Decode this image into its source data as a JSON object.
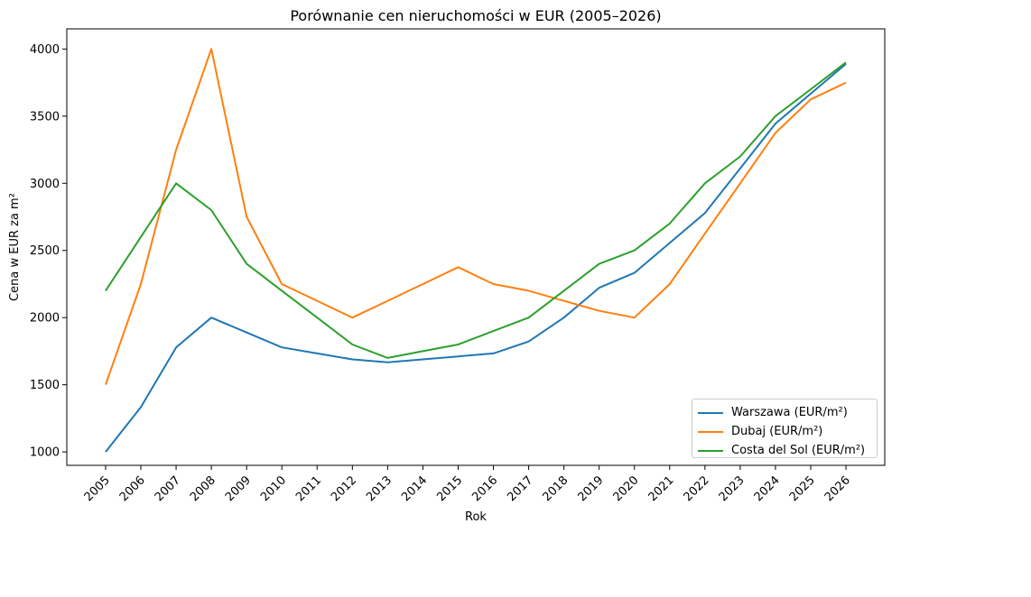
{
  "chart_data": {
    "type": "line",
    "title": "Porównanie cen nieruchomości w EUR (2005–2026)",
    "xlabel": "Rok",
    "ylabel": "Cena w EUR za m²",
    "x": [
      2005,
      2006,
      2007,
      2008,
      2009,
      2010,
      2011,
      2012,
      2013,
      2014,
      2015,
      2016,
      2017,
      2018,
      2019,
      2020,
      2021,
      2022,
      2023,
      2024,
      2025,
      2026
    ],
    "x_tick_labels": [
      "2005",
      "2006",
      "2007",
      "2008",
      "2009",
      "2010",
      "2011",
      "2012",
      "2013",
      "2014",
      "2015",
      "2016",
      "2017",
      "2018",
      "2019",
      "2020",
      "2021",
      "2022",
      "2023",
      "2024",
      "2025",
      "2026"
    ],
    "y_ticks": [
      1000,
      1500,
      2000,
      2500,
      3000,
      3500,
      4000
    ],
    "y_tick_labels": [
      "1000",
      "1500",
      "2000",
      "2500",
      "3000",
      "3500",
      "4000"
    ],
    "ylim": [
      900,
      4150
    ],
    "xlim": [
      2003.9,
      2027.1
    ],
    "legend_position": "lower-right",
    "series": [
      {
        "name": "Warszawa (EUR/m²)",
        "color": "#1f77b4",
        "values": [
          1000,
          1333,
          1778,
          2000,
          1889,
          1778,
          1733,
          1689,
          1667,
          1689,
          1711,
          1733,
          1822,
          2000,
          2222,
          2333,
          2556,
          2778,
          3111,
          3444,
          3667,
          3889
        ]
      },
      {
        "name": "Dubaj (EUR/m²)",
        "color": "#ff7f0e",
        "values": [
          1500,
          2250,
          3250,
          4000,
          2750,
          2250,
          2125,
          2000,
          2125,
          2250,
          2375,
          2250,
          2200,
          2125,
          2050,
          2000,
          2250,
          2625,
          3000,
          3375,
          3625,
          3750
        ]
      },
      {
        "name": "Costa del Sol (EUR/m²)",
        "color": "#2ca02c",
        "values": [
          2200,
          2600,
          3000,
          2800,
          2400,
          2200,
          2000,
          1800,
          1700,
          1750,
          1800,
          1900,
          2000,
          2200,
          2400,
          2500,
          2700,
          3000,
          3200,
          3500,
          3700,
          3900
        ]
      }
    ]
  }
}
